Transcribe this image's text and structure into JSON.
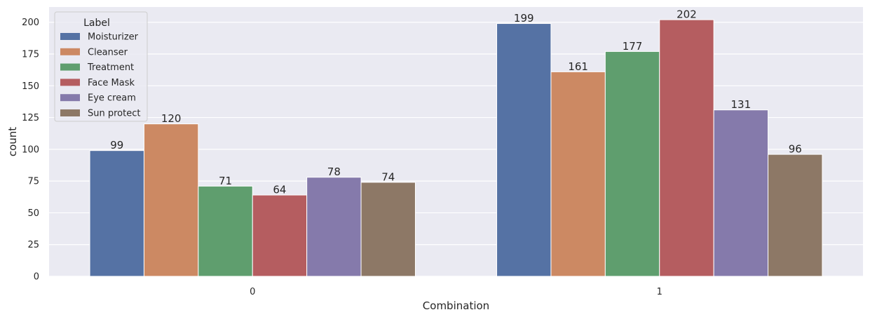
{
  "chart_data": {
    "type": "bar",
    "categories": [
      "0",
      "1"
    ],
    "series": [
      {
        "name": "Moisturizer",
        "values": [
          99,
          199
        ],
        "color": "#5572a4"
      },
      {
        "name": "Cleanser",
        "values": [
          120,
          161
        ],
        "color": "#cc8963"
      },
      {
        "name": "Treatment",
        "values": [
          71,
          177
        ],
        "color": "#5f9e6e"
      },
      {
        "name": "Face Mask",
        "values": [
          64,
          202
        ],
        "color": "#b55d60"
      },
      {
        "name": "Eye cream",
        "values": [
          78,
          131
        ],
        "color": "#857aab"
      },
      {
        "name": "Sun protect",
        "values": [
          74,
          96
        ],
        "color": "#8d7866"
      }
    ],
    "xlabel": "Combination",
    "ylabel": "count",
    "ylim": [
      0,
      212
    ],
    "yticks": [
      0,
      25,
      50,
      75,
      100,
      125,
      150,
      175,
      200
    ],
    "grid": true,
    "legend": {
      "title": "Label",
      "placement": "top-left"
    },
    "background_color": "#eaeaf2",
    "grid_color": "#ffffff"
  }
}
